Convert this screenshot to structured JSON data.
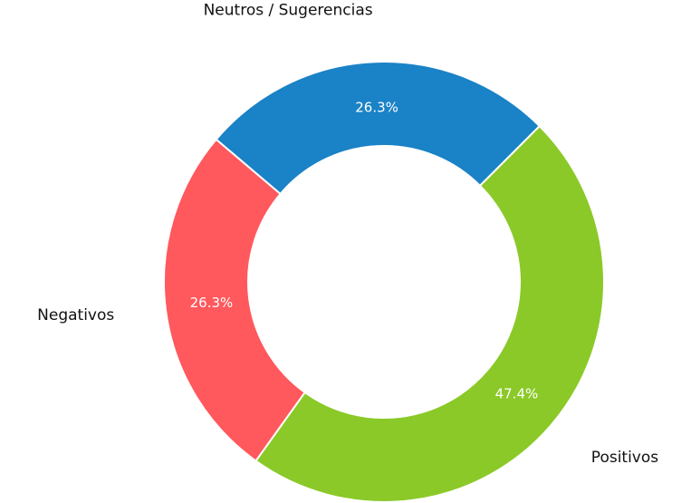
{
  "chart_data": {
    "type": "doughnut",
    "categories": [
      "Neutros / Sugerencias",
      "Positivos",
      "Negativos"
    ],
    "values": [
      26.3,
      47.4,
      26.3
    ],
    "value_labels": [
      "26.3%",
      "47.4%",
      "26.3%"
    ],
    "colors": [
      "#1a82c6",
      "#8bc928",
      "#ff585d"
    ]
  }
}
